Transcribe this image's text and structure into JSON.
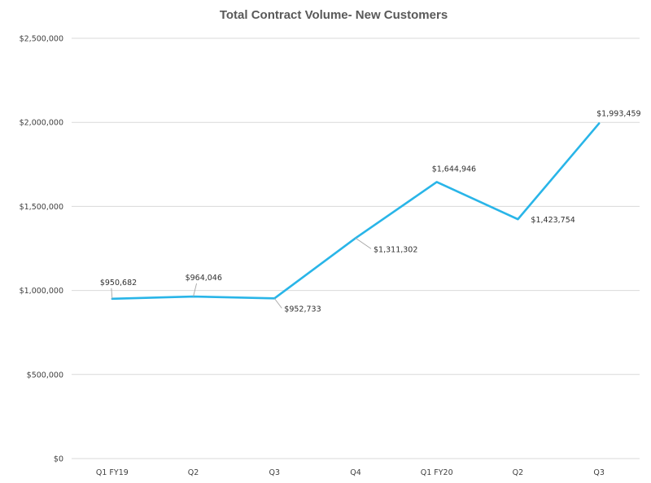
{
  "chart_data": {
    "type": "line",
    "title": "Total Contract Volume- New Customers",
    "xlabel": "",
    "ylabel": "",
    "categories": [
      "Q1 FY19",
      "Q2",
      "Q3",
      "Q4",
      "Q1 FY20",
      "Q2",
      "Q3"
    ],
    "series": [
      {
        "values": [
          950682,
          964046,
          952733,
          1311302,
          1644946,
          1423754,
          1993459
        ],
        "labels": [
          "$950,682",
          "$964,046",
          "$952,733",
          "$1,311,302",
          "$1,644,946",
          "$1,423,754",
          "$1,993,459"
        ],
        "color": "#29b5e8"
      }
    ],
    "ylim": [
      0,
      2500000
    ],
    "yticks": [
      0,
      500000,
      1000000,
      1500000,
      2000000,
      2500000
    ],
    "ytick_labels": [
      "$0",
      "$500,000",
      "$1,000,000",
      "$1,500,000",
      "$2,000,000",
      "$2,500,000"
    ],
    "grid": true,
    "legend": "none",
    "gridline_color": "#d9d9d9"
  }
}
